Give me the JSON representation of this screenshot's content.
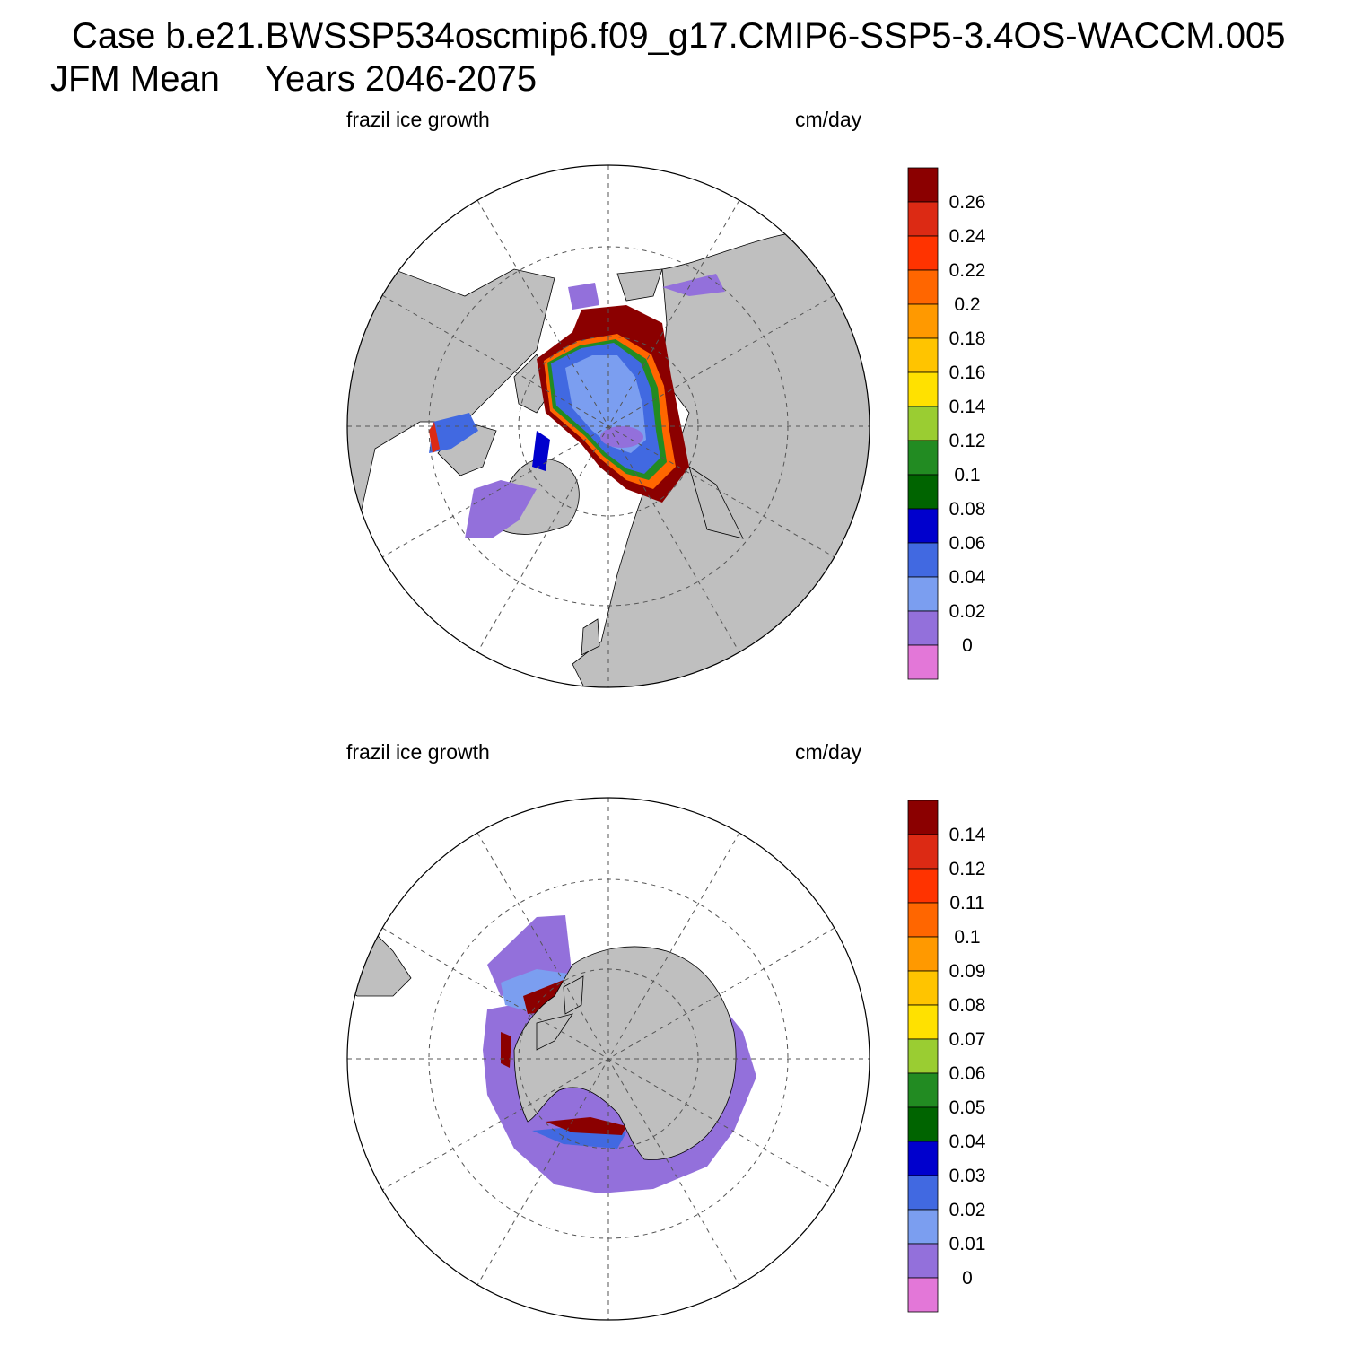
{
  "title": {
    "case": "Case b.e21.BWSSP534oscmip6.f09_g17.CMIP6-SSP5-3.4OS-WACCM.005",
    "season": "JFM Mean",
    "years": "Years 2046-2075"
  },
  "colors": {
    "land": "#bfbfbf",
    "bins": [
      "#e377d8",
      "#9370db",
      "#7b9ef0",
      "#4169e1",
      "#0000cd",
      "#006400",
      "#228b22",
      "#9acd32",
      "#ffe100",
      "#ffc400",
      "#ff9900",
      "#ff6600",
      "#ff3300",
      "#dc2a14",
      "#8b0000"
    ]
  },
  "panels": [
    {
      "id": "north",
      "hemisphere": "Northern Hemisphere",
      "variable_label": "frazil ice growth",
      "units_label": "cm/day",
      "colorbar_ticks": [
        "0",
        "0.02",
        "0.04",
        "0.06",
        "0.08",
        "0.1",
        "0.12",
        "0.14",
        "0.16",
        "0.18",
        "0.2",
        "0.22",
        "0.24",
        "0.26"
      ]
    },
    {
      "id": "south",
      "hemisphere": "Southern Hemisphere",
      "variable_label": "frazil ice growth",
      "units_label": "cm/day",
      "colorbar_ticks": [
        "0",
        "0.01",
        "0.02",
        "0.03",
        "0.04",
        "0.05",
        "0.06",
        "0.07",
        "0.08",
        "0.09",
        "0.1",
        "0.11",
        "0.12",
        "0.14"
      ]
    }
  ]
}
